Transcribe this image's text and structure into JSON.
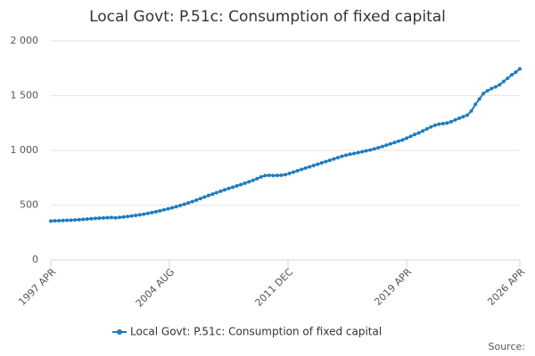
{
  "chart_data": {
    "type": "line",
    "title": "Local Govt: P.51c: Consumption of fixed capital",
    "series": [
      {
        "name": "Local Govt: P.51c: Consumption of fixed capital",
        "color": "#1f7cbf",
        "x": [
          1997.25,
          1997.5,
          1997.75,
          1998,
          1998.25,
          1998.5,
          1998.75,
          1999,
          1999.25,
          1999.5,
          1999.75,
          2000,
          2000.25,
          2000.5,
          2000.75,
          2001,
          2001.25,
          2001.5,
          2001.75,
          2002,
          2002.25,
          2002.5,
          2002.75,
          2003,
          2003.25,
          2003.5,
          2003.75,
          2004,
          2004.25,
          2004.5,
          2004.75,
          2005,
          2005.25,
          2005.5,
          2005.75,
          2006,
          2006.25,
          2006.5,
          2006.75,
          2007,
          2007.25,
          2007.5,
          2007.75,
          2008,
          2008.25,
          2008.5,
          2008.75,
          2009,
          2009.25,
          2009.5,
          2009.75,
          2010,
          2010.25,
          2010.5,
          2010.75,
          2011,
          2011.25,
          2011.5,
          2011.75,
          2012,
          2012.25,
          2012.5,
          2012.75,
          2013,
          2013.25,
          2013.5,
          2013.75,
          2014,
          2014.25,
          2014.5,
          2014.75,
          2015,
          2015.25,
          2015.5,
          2015.75,
          2016,
          2016.25,
          2016.5,
          2016.75,
          2017,
          2017.25,
          2017.5,
          2017.75,
          2018,
          2018.25,
          2018.5,
          2018.75,
          2019,
          2019.25,
          2019.5,
          2019.75,
          2020,
          2020.25,
          2020.5,
          2020.75,
          2021,
          2021.25,
          2021.5,
          2021.75,
          2022,
          2022.25,
          2022.5,
          2022.75,
          2023,
          2023.25,
          2023.5,
          2023.75,
          2024,
          2024.25,
          2024.5,
          2024.75,
          2025,
          2025.25,
          2025.5,
          2025.75,
          2026,
          2026.25
        ],
        "values": [
          355,
          357,
          358,
          360,
          362,
          363,
          365,
          367,
          370,
          373,
          376,
          379,
          381,
          383,
          385,
          387,
          384,
          388,
          392,
          396,
          401,
          406,
          412,
          418,
          425,
          432,
          440,
          448,
          457,
          466,
          476,
          486,
          497,
          508,
          520,
          533,
          546,
          560,
          574,
          588,
          601,
          614,
          627,
          640,
          652,
          664,
          676,
          688,
          700,
          713,
          727,
          742,
          758,
          770,
          772,
          770,
          771,
          773,
          778,
          790,
          802,
          814,
          826,
          838,
          850,
          862,
          874,
          886,
          898,
          910,
          922,
          934,
          946,
          956,
          965,
          972,
          980,
          988,
          996,
          1004,
          1014,
          1024,
          1036,
          1048,
          1060,
          1072,
          1084,
          1096,
          1112,
          1128,
          1145,
          1160,
          1178,
          1196,
          1214,
          1230,
          1240,
          1245,
          1250,
          1262,
          1278,
          1294,
          1308,
          1322,
          1360,
          1420,
          1470,
          1520,
          1545,
          1565,
          1580,
          1600,
          1630,
          1660,
          1690,
          1715,
          1745
        ]
      }
    ],
    "xlim": [
      1997.25,
      2026.25
    ],
    "xticks": [
      {
        "value": 1997.25,
        "label": "1997 APR"
      },
      {
        "value": 2004.5833,
        "label": "2004 AUG"
      },
      {
        "value": 2011.9167,
        "label": "2011 DEC"
      },
      {
        "value": 2019.25,
        "label": "2019 APR"
      },
      {
        "value": 2026.25,
        "label": "2026 APR"
      }
    ],
    "ylim": [
      0,
      2000
    ],
    "yticks": [
      0,
      {
        "value": 500,
        "label": "500"
      },
      {
        "value": 1000,
        "label": "1 000"
      },
      {
        "value": 1500,
        "label": "1 500"
      },
      {
        "value": 2000,
        "label": "2 000"
      }
    ],
    "grid": true,
    "source": "Source:"
  }
}
